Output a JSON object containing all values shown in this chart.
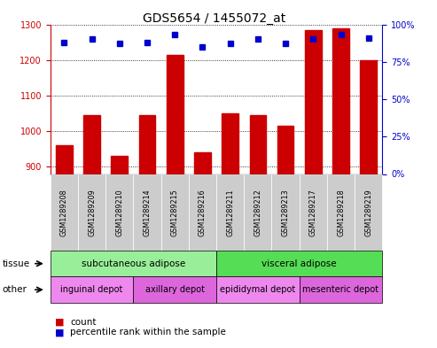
{
  "title": "GDS5654 / 1455072_at",
  "samples": [
    "GSM1289208",
    "GSM1289209",
    "GSM1289210",
    "GSM1289214",
    "GSM1289215",
    "GSM1289216",
    "GSM1289211",
    "GSM1289212",
    "GSM1289213",
    "GSM1289217",
    "GSM1289218",
    "GSM1289219"
  ],
  "counts": [
    960,
    1045,
    930,
    1045,
    1215,
    940,
    1050,
    1045,
    1015,
    1285,
    1290,
    1200
  ],
  "percentile_ranks": [
    88,
    90,
    87,
    88,
    93,
    85,
    87,
    90,
    87,
    90,
    93,
    91
  ],
  "ylim_left": [
    880,
    1300
  ],
  "ylim_right": [
    0,
    100
  ],
  "yticks_left": [
    900,
    1000,
    1100,
    1200,
    1300
  ],
  "yticks_right": [
    0,
    25,
    50,
    75,
    100
  ],
  "bar_color": "#cc0000",
  "dot_color": "#0000cc",
  "tissue_groups": [
    {
      "label": "subcutaneous adipose",
      "start": 0,
      "end": 6,
      "color": "#99ee99"
    },
    {
      "label": "visceral adipose",
      "start": 6,
      "end": 12,
      "color": "#55dd55"
    }
  ],
  "other_groups": [
    {
      "label": "inguinal depot",
      "start": 0,
      "end": 3,
      "color": "#ee88ee"
    },
    {
      "label": "axillary depot",
      "start": 3,
      "end": 6,
      "color": "#dd66dd"
    },
    {
      "label": "epididymal depot",
      "start": 6,
      "end": 9,
      "color": "#ee88ee"
    },
    {
      "label": "mesenteric depot",
      "start": 9,
      "end": 12,
      "color": "#dd66dd"
    }
  ],
  "tissue_label": "tissue",
  "other_label": "other",
  "legend_count_label": "count",
  "legend_percentile_label": "percentile rank within the sample",
  "bar_width": 0.6,
  "background_color": "#ffffff",
  "xtick_bg_color": "#cccccc",
  "bar_color_hex": "#cc0000",
  "dot_color_hex": "#0000cc",
  "axis_color_left": "#cc0000",
  "axis_color_right": "#0000cc",
  "title_fontsize": 10,
  "tick_fontsize": 7,
  "label_fontsize": 7.5,
  "annot_fontsize": 7
}
